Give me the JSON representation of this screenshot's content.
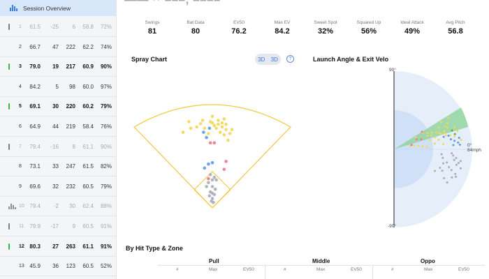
{
  "sidebar": {
    "header_label": "Session Overview",
    "rows": [
      {
        "num": "1",
        "v1": "61.5",
        "v2": "-25",
        "v3": "6",
        "v4": "58.8",
        "v5": "72%",
        "style": "dim",
        "marker": "grey"
      },
      {
        "num": "2",
        "v1": "66.7",
        "v2": "47",
        "v3": "222",
        "v4": "62.2",
        "v5": "74%",
        "style": "",
        "marker": ""
      },
      {
        "num": "3",
        "v1": "79.0",
        "v2": "19",
        "v3": "217",
        "v4": "60.9",
        "v5": "90%",
        "style": "bold",
        "marker": "green"
      },
      {
        "num": "4",
        "v1": "84.2",
        "v2": "5",
        "v3": "98",
        "v4": "60.0",
        "v5": "97%",
        "style": "",
        "marker": ""
      },
      {
        "num": "5",
        "v1": "69.1",
        "v2": "30",
        "v3": "220",
        "v4": "60.2",
        "v5": "79%",
        "style": "bold",
        "marker": "green"
      },
      {
        "num": "6",
        "v1": "64.9",
        "v2": "44",
        "v3": "219",
        "v4": "58.4",
        "v5": "76%",
        "style": "",
        "marker": ""
      },
      {
        "num": "7",
        "v1": "79.4",
        "v2": "-16",
        "v3": "8",
        "v4": "61.1",
        "v5": "90%",
        "style": "dim",
        "marker": "grey"
      },
      {
        "num": "8",
        "v1": "73.1",
        "v2": "33",
        "v3": "247",
        "v4": "61.5",
        "v5": "82%",
        "style": "",
        "marker": ""
      },
      {
        "num": "9",
        "v1": "69.6",
        "v2": "32",
        "v3": "232",
        "v4": "60.5",
        "v5": "79%",
        "style": "",
        "marker": ""
      },
      {
        "num": "10",
        "v1": "79.4",
        "v2": "-2",
        "v3": "30",
        "v4": "62.4",
        "v5": "88%",
        "style": "dim",
        "marker": "bars"
      },
      {
        "num": "11",
        "v1": "79.9",
        "v2": "-17",
        "v3": "9",
        "v4": "60.5",
        "v5": "91%",
        "style": "dim",
        "marker": "grey"
      },
      {
        "num": "12",
        "v1": "80.3",
        "v2": "27",
        "v3": "263",
        "v4": "61.1",
        "v5": "91%",
        "style": "bold",
        "marker": "green"
      },
      {
        "num": "13",
        "v1": "45.9",
        "v2": "36",
        "v3": "123",
        "v4": "60.5",
        "v5": "52%",
        "style": "",
        "marker": ""
      }
    ]
  },
  "stats": [
    {
      "label": "Swings",
      "value": "81"
    },
    {
      "label": "Bat Data",
      "value": "80"
    },
    {
      "label": "EV50",
      "value": "76.2"
    },
    {
      "label": "Max EV",
      "value": "84.2"
    },
    {
      "label": "Sweet Spot",
      "value": "32%"
    },
    {
      "label": "Squared Up",
      "value": "56%"
    },
    {
      "label": "Ideal Attack",
      "value": "49%"
    },
    {
      "label": "Avg Pitch",
      "value": "56.8"
    }
  ],
  "spray_chart": {
    "title": "Spray Chart",
    "toggle": [
      "3D",
      "3D"
    ],
    "help": "?"
  },
  "launch_chart": {
    "title": "Launch Angle & Exit Velo",
    "top_label": "90°",
    "bottom_label": "-90°",
    "zero_label": "0°",
    "speed_label": "84mph"
  },
  "hit_type": {
    "title": "By Hit Type & Zone",
    "zones": [
      "Pull",
      "Middle",
      "Oppo"
    ],
    "columns": [
      "#",
      "Max",
      "EV50"
    ]
  },
  "colors": {
    "accent": "#3b7be0",
    "header_bg": "#d7e6f8",
    "field_line": "#f0c93c",
    "green_marker": "#39b54a",
    "ideal_zone": "#8fd39a",
    "launch_bg": "#e6eefa"
  },
  "chart_data": [
    {
      "type": "scatter",
      "title": "Spray Chart",
      "series": [
        {
          "color": "yellow",
          "points": [
            [
              -30,
              112
            ],
            [
              -22,
              118
            ],
            [
              -12,
              125
            ],
            [
              -8,
              118
            ],
            [
              -2,
              128
            ],
            [
              2,
              122
            ],
            [
              4,
              118
            ],
            [
              6,
              130
            ],
            [
              8,
              112
            ],
            [
              10,
              120
            ],
            [
              12,
              108
            ],
            [
              14,
              116
            ],
            [
              16,
              100
            ],
            [
              18,
              110
            ],
            [
              -4,
              110
            ],
            [
              -16,
              120
            ],
            [
              0,
              126
            ],
            [
              6,
              124
            ],
            [
              10,
              126
            ],
            [
              12,
              132
            ],
            [
              -10,
              130
            ],
            [
              14,
              124
            ],
            [
              20,
              116
            ],
            [
              0,
              136
            ],
            [
              -24,
              128
            ]
          ]
        },
        {
          "color": "blue",
          "points": [
            [
              -9,
              112
            ],
            [
              -6,
              104
            ],
            [
              -3,
              118
            ],
            [
              -4,
              64
            ],
            [
              0,
              66
            ],
            [
              -8,
              58
            ]
          ]
        },
        {
          "color": "red",
          "points": [
            [
              12,
              56
            ],
            [
              14,
              68
            ],
            [
              -2,
              96
            ],
            [
              2,
              96
            ],
            [
              -4,
              42
            ]
          ]
        },
        {
          "color": "grey",
          "points": [
            [
              -2,
              48
            ],
            [
              0,
              40
            ],
            [
              2,
              44
            ],
            [
              -4,
              36
            ],
            [
              0,
              30
            ],
            [
              -2,
              22
            ],
            [
              2,
              18
            ],
            [
              0,
              12
            ],
            [
              -1,
              8
            ],
            [
              1,
              6
            ],
            [
              3,
              26
            ],
            [
              -3,
              16
            ],
            [
              0,
              20
            ],
            [
              4,
              40
            ],
            [
              -6,
              30
            ]
          ]
        }
      ]
    },
    {
      "type": "scatter",
      "title": "Launch Angle & Exit Velo",
      "xlabel": "",
      "ylabel": "",
      "ylim": [
        -90,
        90
      ],
      "series": [
        {
          "color": "yellow",
          "points": [
            [
              30,
              28
            ],
            [
              40,
              30
            ],
            [
              45,
              26
            ],
            [
              50,
              24
            ],
            [
              55,
              22
            ],
            [
              60,
              18
            ],
            [
              60,
              26
            ],
            [
              65,
              15
            ],
            [
              65,
              20
            ],
            [
              70,
              14
            ],
            [
              70,
              22
            ],
            [
              75,
              12
            ],
            [
              75,
              18
            ],
            [
              78,
              20
            ],
            [
              80,
              10
            ],
            [
              80,
              16
            ],
            [
              82,
              8
            ],
            [
              20,
              12
            ],
            [
              25,
              10
            ],
            [
              30,
              8
            ],
            [
              35,
              6
            ],
            [
              40,
              4
            ],
            [
              45,
              14
            ],
            [
              50,
              8
            ],
            [
              55,
              12
            ],
            [
              60,
              6
            ],
            [
              68,
              24
            ],
            [
              72,
              26
            ],
            [
              76,
              30
            ],
            [
              66,
              30
            ],
            [
              64,
              18
            ],
            [
              58,
              20
            ],
            [
              52,
              16
            ],
            [
              48,
              20
            ],
            [
              44,
              22
            ]
          ]
        },
        {
          "color": "green",
          "points": [
            [
              74,
              18
            ],
            [
              76,
              14
            ]
          ]
        },
        {
          "color": "blue",
          "points": [
            [
              70,
              10
            ],
            [
              74,
              8
            ],
            [
              78,
              6
            ],
            [
              80,
              4
            ],
            [
              68,
              14
            ],
            [
              72,
              4
            ],
            [
              80,
              10
            ],
            [
              62,
              14
            ]
          ]
        },
        {
          "color": "red",
          "points": [
            [
              40,
              32
            ],
            [
              35,
              20
            ],
            [
              22,
              14
            ],
            [
              30,
              24
            ]
          ]
        },
        {
          "color": "grey",
          "points": [
            [
              70,
              -4
            ],
            [
              72,
              -6
            ],
            [
              74,
              -10
            ],
            [
              76,
              -8
            ],
            [
              80,
              -12
            ],
            [
              82,
              -10
            ],
            [
              78,
              -14
            ],
            [
              70,
              -18
            ],
            [
              74,
              -20
            ],
            [
              80,
              -22
            ],
            [
              82,
              -24
            ],
            [
              66,
              -14
            ],
            [
              60,
              -10
            ],
            [
              58,
              -6
            ],
            [
              62,
              -16
            ],
            [
              78,
              -26
            ],
            [
              84,
              -16
            ],
            [
              70,
              -30
            ],
            [
              76,
              -32
            ],
            [
              64,
              -24
            ],
            [
              60,
              -22
            ],
            [
              56,
              -28
            ]
          ]
        }
      ]
    }
  ]
}
